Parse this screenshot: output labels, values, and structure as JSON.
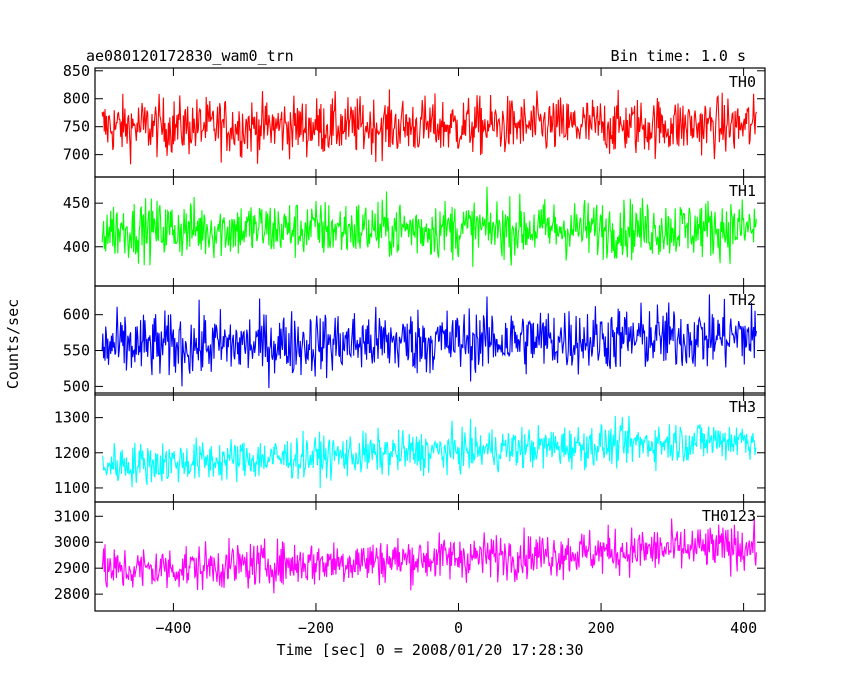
{
  "chart_data": {
    "type": "line",
    "title": "ae080120172830_wam0_trn",
    "subtitle": "Bin time: 1.0 s",
    "xlabel": "Time [sec] 0 = 2008/01/20 17:28:30",
    "ylabel": "Counts/sec",
    "xlim": [
      -510,
      430
    ],
    "x_ticks": [
      -400,
      -200,
      0,
      200,
      400
    ],
    "x_tick_labels": [
      "−400",
      "−200",
      "0",
      "200",
      "400"
    ],
    "x_range": [
      -500,
      418
    ],
    "panels": [
      {
        "label": "TH0",
        "color": "#ff0000",
        "ylim": [
          660,
          855
        ],
        "y_ticks": [
          700,
          750,
          800,
          850
        ],
        "y_tick_labels": [
          "700",
          "750",
          "800",
          "850"
        ],
        "trend_start": 750,
        "trend_end": 752,
        "noise": 34
      },
      {
        "label": "TH1",
        "color": "#00ff00",
        "ylim": [
          355,
          480
        ],
        "y_ticks": [
          400,
          450
        ],
        "y_tick_labels": [
          "400",
          "450"
        ],
        "trend_start": 420,
        "trend_end": 421,
        "noise": 22
      },
      {
        "label": "TH2",
        "color": "#0000ff",
        "ylim": [
          488,
          640
        ],
        "y_ticks": [
          500,
          550,
          600
        ],
        "y_tick_labels": [
          "500",
          "550",
          "600"
        ],
        "trend_start": 555,
        "trend_end": 570,
        "noise": 30
      },
      {
        "label": "TH3",
        "color": "#00ffff",
        "ylim": [
          1060,
          1370
        ],
        "y_ticks": [
          1100,
          1200,
          1300
        ],
        "y_tick_labels": [
          "1100",
          "1200",
          "1300"
        ],
        "trend_start": 1165,
        "trend_end": 1240,
        "noise": 40
      },
      {
        "label": "TH0123",
        "color": "#ff00ff",
        "ylim": [
          2735,
          3155
        ],
        "y_ticks": [
          2800,
          2900,
          3000,
          3100
        ],
        "y_tick_labels": [
          "2800",
          "2900",
          "3000",
          "3100"
        ],
        "trend_start": 2890,
        "trend_end": 2985,
        "noise": 58
      }
    ]
  }
}
